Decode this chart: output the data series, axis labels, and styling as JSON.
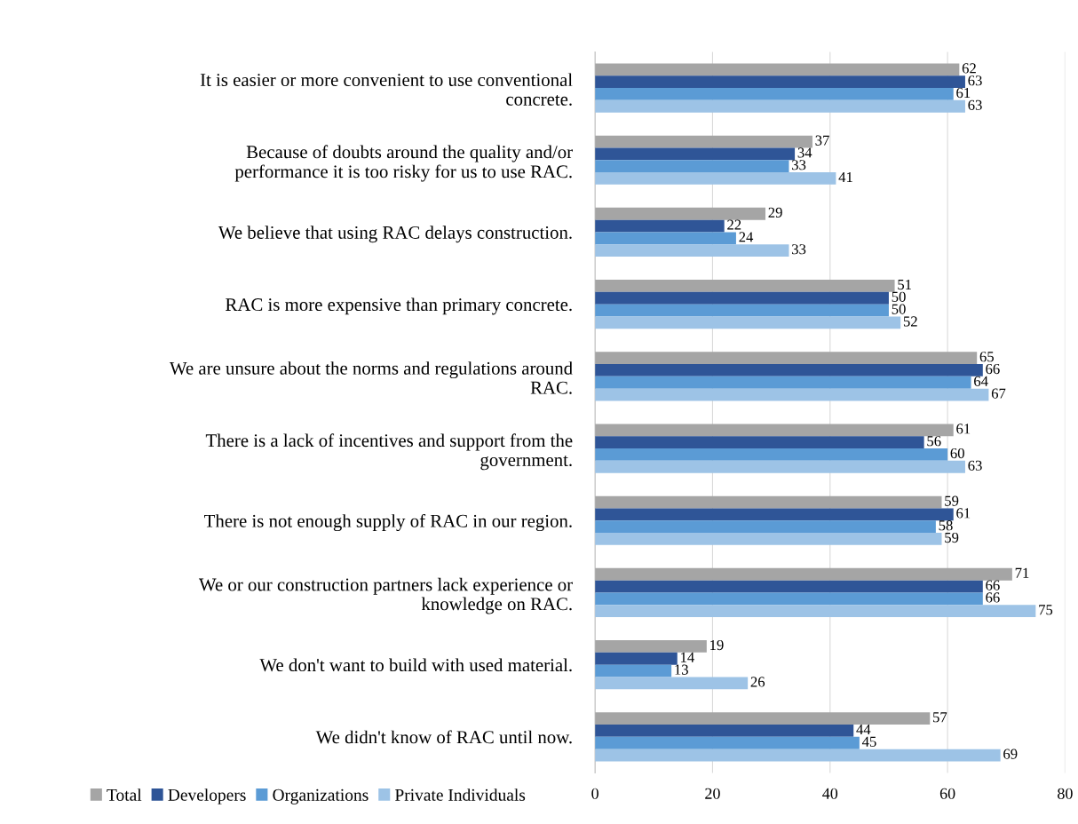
{
  "chart_data": {
    "type": "bar",
    "orientation": "horizontal",
    "categories": [
      "It is easier or more convenient to use conventional concrete.",
      "Because of doubts around the quality and/or performance it is too risky for us to use RAC.",
      "We believe that using RAC delays construction.",
      "RAC is more expensive than primary concrete.",
      "We are unsure about the norms and regulations around RAC.",
      "There is a lack of incentives and support from the government.",
      "There is not enough supply of RAC in our region.",
      "We or our construction partners lack experience or knowledge on RAC.",
      "We don't want to build with used material.",
      "We didn't know of RAC until now."
    ],
    "series": [
      {
        "name": "Total",
        "color": "#a5a5a5",
        "values": [
          62,
          37,
          29,
          51,
          65,
          61,
          59,
          71,
          19,
          57
        ]
      },
      {
        "name": "Developers",
        "color": "#2f5597",
        "values": [
          63,
          34,
          22,
          50,
          66,
          56,
          61,
          66,
          14,
          44
        ]
      },
      {
        "name": "Organizations",
        "color": "#5b9bd5",
        "values": [
          61,
          33,
          24,
          50,
          64,
          60,
          58,
          66,
          13,
          45
        ]
      },
      {
        "name": "Private Individuals",
        "color": "#9dc3e6",
        "values": [
          63,
          41,
          33,
          52,
          67,
          63,
          59,
          75,
          26,
          69
        ]
      }
    ],
    "xlim": [
      0,
      80
    ],
    "xticks": [
      0,
      20,
      40,
      60,
      80
    ],
    "grid": "x",
    "data_labels": true,
    "legend": "bottom left"
  }
}
